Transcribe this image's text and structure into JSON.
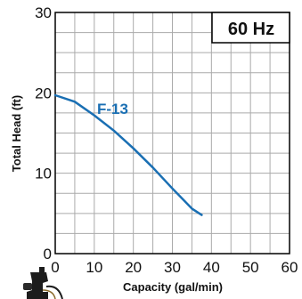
{
  "chart_data": {
    "type": "line",
    "frequency_label": "60 Hz",
    "xlabel": "Capacity (gal/min)",
    "ylabel": "Total Head (ft)",
    "xlim": [
      0,
      60
    ],
    "ylim": [
      0,
      30
    ],
    "x_ticks": [
      "0",
      "10",
      "20",
      "30",
      "40",
      "50",
      "60"
    ],
    "y_ticks": [
      "0",
      "10",
      "20",
      "30"
    ],
    "grid": true,
    "series": [
      {
        "name": "F-13",
        "color": "#1a6fb3",
        "x": [
          0,
          5,
          10,
          15,
          20,
          25,
          30,
          35,
          37.5
        ],
        "y": [
          19.7,
          18.9,
          17.2,
          15.3,
          13.1,
          10.7,
          8.1,
          5.6,
          4.8
        ]
      }
    ]
  },
  "colors": {
    "grid": "#aaaaaa",
    "frame": "#000000",
    "curve": "#1a6fb3"
  },
  "icons": {
    "pump": "pump-icon"
  }
}
